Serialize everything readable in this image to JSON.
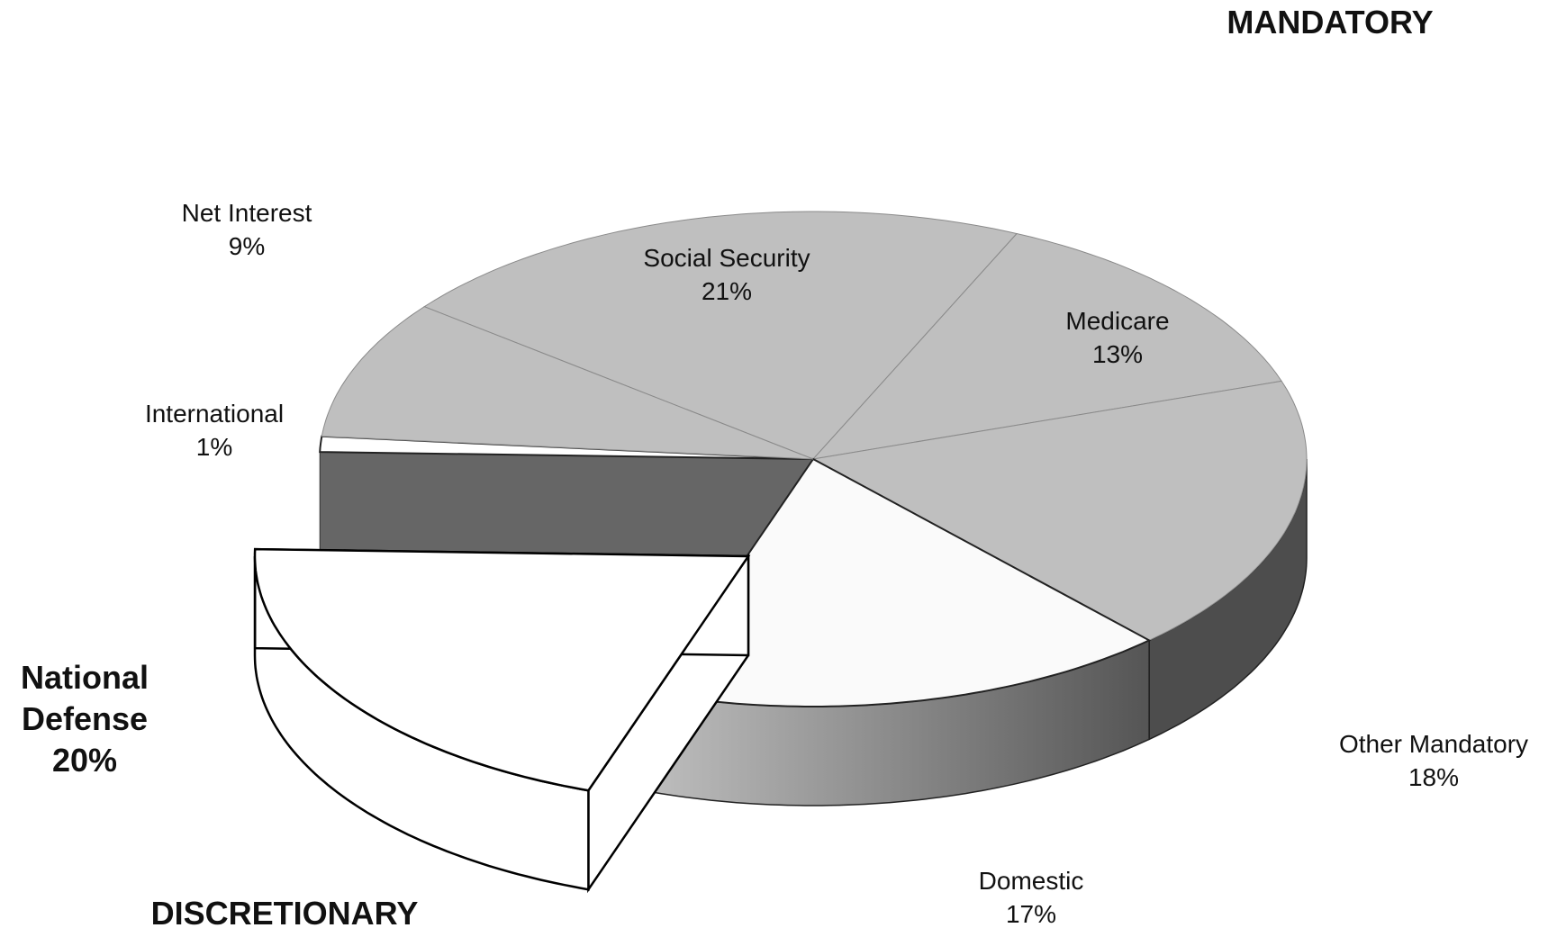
{
  "chart_data": {
    "type": "pie",
    "categories": [
      "Social Security",
      "Medicare",
      "Other Mandatory",
      "Domestic",
      "National Defense",
      "International",
      "Net Interest"
    ],
    "values": [
      21,
      13,
      18,
      17,
      20,
      1,
      9
    ],
    "value_labels": [
      "21%",
      "13%",
      "18%",
      "17%",
      "20%",
      "1%",
      "9%"
    ],
    "colors": [
      "#bfbfbf",
      "#bfbfbf",
      "#bfbfbf",
      "#fafafa",
      "#ffffff",
      "#ffffff",
      "#bfbfbf"
    ],
    "exploded": "National Defense",
    "annotations": [
      "MANDATORY",
      "DISCRETIONARY"
    ]
  }
}
